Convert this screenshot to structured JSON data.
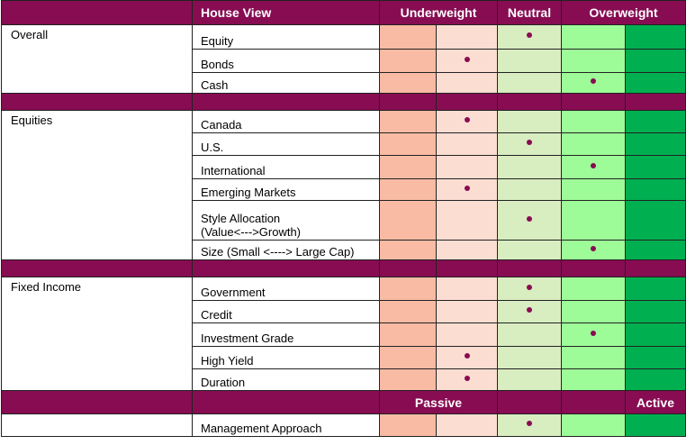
{
  "header": {
    "house_view": "House View",
    "underweight": "Underweight",
    "neutral": "Neutral",
    "overweight": "Overweight"
  },
  "colors": {
    "header": "#870c52",
    "strong_underweight": "#f9bba4",
    "underweight": "#fcddd2",
    "neutral": "#d8edc0",
    "overweight": "#9efc98",
    "strong_overweight": "#00b050",
    "dot": "#870c52"
  },
  "groups": [
    {
      "category": "Overall",
      "items": [
        {
          "label": "Equity",
          "rating": 2
        },
        {
          "label": "Bonds",
          "rating": 1
        },
        {
          "label": "Cash",
          "rating": 3
        }
      ]
    },
    {
      "category": "Equities",
      "items": [
        {
          "label": "Canada",
          "rating": 1
        },
        {
          "label": "U.S.",
          "rating": 2
        },
        {
          "label": "International",
          "rating": 3
        },
        {
          "label": "Emerging Markets",
          "rating": 1
        },
        {
          "label": "Style Allocation\n(Value<--->Growth)",
          "rating": 2
        },
        {
          "label": "Size (Small <----> Large Cap)",
          "rating": 3
        }
      ]
    },
    {
      "category": "Fixed Income",
      "items": [
        {
          "label": "Government",
          "rating": 2
        },
        {
          "label": "Credit",
          "rating": 2
        },
        {
          "label": "Investment  Grade",
          "rating": 3
        },
        {
          "label": "High Yield",
          "rating": 1
        },
        {
          "label": "Duration",
          "rating": 1
        }
      ]
    }
  ],
  "approach_header": {
    "passive": "Passive",
    "active": "Active"
  },
  "approach": {
    "label": "Management  Approach",
    "rating": 2
  }
}
